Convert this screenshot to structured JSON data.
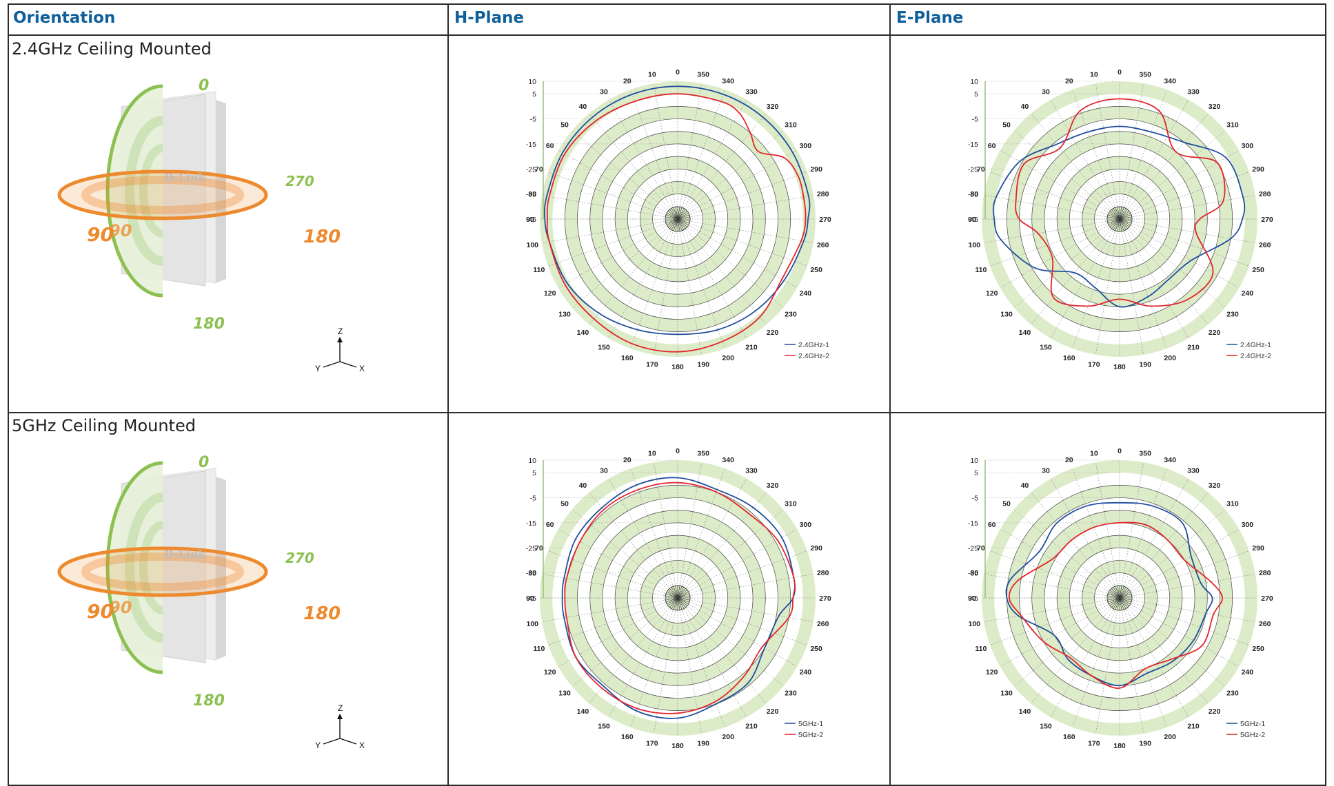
{
  "headers": {
    "orientation": "Orientation",
    "h_plane": "H-Plane",
    "e_plane": "E-Plane"
  },
  "rows": [
    {
      "label": "2.4GHz Ceiling Mounted",
      "device_logo": "D-Link",
      "axis_labels": [
        "0",
        "270",
        "90",
        "90",
        "180",
        "180"
      ],
      "coord": [
        "Z",
        "Y",
        "X"
      ]
    },
    {
      "label": "5GHz Ceiling Mounted",
      "device_logo": "D-Link",
      "axis_labels": [
        "0",
        "270",
        "90",
        "90",
        "180",
        "180"
      ],
      "coord": [
        "Z",
        "Y",
        "X"
      ]
    }
  ],
  "colors": {
    "series1": "#1f4e9e",
    "series2": "#e3242b",
    "ring": "#dcebc8",
    "header_text": "#0e5f9a",
    "green": "#8cc152",
    "orange": "#ee8a2e"
  },
  "chart_data": [
    {
      "type": "polar",
      "plane": "H-Plane",
      "band": "2.4GHz",
      "rlim": [
        -45,
        10
      ],
      "radial_ticks": [
        "10",
        "5",
        "-5",
        "-15",
        "-25",
        "-35",
        "-45"
      ],
      "angle_ticks": [
        "0",
        "10",
        "20",
        "30",
        "40",
        "50",
        "60",
        "70",
        "80",
        "90",
        "100",
        "110",
        "120",
        "130",
        "140",
        "150",
        "160",
        "170",
        "180",
        "190",
        "200",
        "210",
        "220",
        "230",
        "240",
        "250",
        "260",
        "270",
        "280",
        "290",
        "300",
        "310",
        "320",
        "330",
        "340",
        "350"
      ],
      "series": [
        {
          "name": "2.4GHz-1",
          "angles": [
            0,
            20,
            40,
            60,
            80,
            90,
            100,
            120,
            140,
            160,
            180,
            200,
            220,
            240,
            260,
            270,
            280,
            300,
            320,
            340
          ],
          "values": [
            8,
            8,
            8,
            8,
            8,
            8,
            7,
            6,
            4,
            2,
            1,
            2,
            3,
            4,
            6,
            7,
            8,
            8,
            8,
            8
          ]
        },
        {
          "name": "2.4GHz-2",
          "angles": [
            0,
            20,
            40,
            60,
            80,
            90,
            100,
            120,
            140,
            160,
            180,
            200,
            220,
            240,
            260,
            270,
            280,
            290,
            300,
            310,
            320,
            330,
            340
          ],
          "values": [
            5,
            5,
            6,
            7,
            7,
            7,
            7,
            7,
            7,
            8,
            8,
            7,
            6,
            3,
            5,
            6,
            6,
            6,
            4,
            -3,
            0,
            4,
            5
          ]
        }
      ]
    },
    {
      "type": "polar",
      "plane": "E-Plane",
      "band": "2.4GHz",
      "rlim": [
        -45,
        10
      ],
      "radial_ticks": [
        "10",
        "5",
        "-5",
        "-15",
        "-25",
        "-35",
        "-45"
      ],
      "angle_ticks": [
        "0",
        "10",
        "20",
        "30",
        "40",
        "50",
        "60",
        "70",
        "80",
        "90",
        "100",
        "110",
        "120",
        "130",
        "140",
        "150",
        "160",
        "170",
        "180",
        "190",
        "200",
        "210",
        "220",
        "230",
        "240",
        "250",
        "260",
        "270",
        "280",
        "290",
        "300",
        "310",
        "320",
        "330",
        "340",
        "350"
      ],
      "series": [
        {
          "name": "2.4GHz-1",
          "angles": [
            0,
            20,
            40,
            60,
            80,
            90,
            100,
            120,
            140,
            160,
            180,
            200,
            220,
            240,
            260,
            270,
            280,
            300,
            320,
            340
          ],
          "values": [
            -8,
            -8,
            -6,
            1,
            5,
            5,
            3,
            -6,
            -17,
            -16,
            -10,
            -12,
            -14,
            -12,
            0,
            4,
            5,
            4,
            -5,
            -8
          ]
        },
        {
          "name": "2.4GHz-2",
          "angles": [
            0,
            20,
            40,
            60,
            80,
            90,
            100,
            120,
            140,
            160,
            180,
            200,
            220,
            240,
            260,
            270,
            280,
            300,
            320,
            340
          ],
          "values": [
            3,
            1,
            -8,
            -1,
            -3,
            -5,
            -12,
            -14,
            -4,
            -8,
            -13,
            -8,
            -3,
            -2,
            -14,
            -13,
            -3,
            0,
            -10,
            1
          ]
        }
      ]
    },
    {
      "type": "polar",
      "plane": "H-Plane",
      "band": "5GHz",
      "rlim": [
        -45,
        10
      ],
      "radial_ticks": [
        "10",
        "5",
        "-5",
        "-15",
        "-25",
        "-35",
        "-45"
      ],
      "angle_ticks": [
        "0",
        "10",
        "20",
        "30",
        "40",
        "50",
        "60",
        "70",
        "80",
        "90",
        "100",
        "110",
        "120",
        "130",
        "140",
        "150",
        "160",
        "170",
        "180",
        "190",
        "200",
        "210",
        "220",
        "230",
        "240",
        "250",
        "260",
        "270",
        "280",
        "290",
        "300",
        "310",
        "320",
        "330",
        "340",
        "350"
      ],
      "series": [
        {
          "name": "5GHz-1",
          "angles": [
            0,
            20,
            40,
            60,
            80,
            90,
            100,
            120,
            140,
            160,
            180,
            200,
            220,
            240,
            260,
            270,
            280,
            300,
            320,
            340
          ],
          "values": [
            3,
            3,
            2,
            2,
            1,
            1,
            1,
            2,
            1,
            3,
            3,
            0,
            -1,
            -5,
            -4,
            1,
            2,
            3,
            2,
            1
          ]
        },
        {
          "name": "5GHz-2",
          "angles": [
            0,
            20,
            40,
            60,
            80,
            90,
            100,
            120,
            140,
            160,
            180,
            200,
            220,
            240,
            260,
            270,
            280,
            300,
            320,
            340
          ],
          "values": [
            1,
            1,
            1,
            0,
            0,
            0,
            0,
            2,
            2,
            2,
            1,
            -1,
            -4,
            -6,
            0,
            1,
            2,
            1,
            -1,
            0
          ]
        }
      ]
    },
    {
      "type": "polar",
      "plane": "E-Plane",
      "band": "5GHz",
      "rlim": [
        -45,
        10
      ],
      "radial_ticks": [
        "10",
        "5",
        "-5",
        "-15",
        "-25",
        "-35",
        "-45"
      ],
      "angle_ticks": [
        "0",
        "10",
        "20",
        "30",
        "40",
        "50",
        "60",
        "70",
        "80",
        "90",
        "100",
        "110",
        "120",
        "130",
        "140",
        "150",
        "160",
        "170",
        "180",
        "190",
        "200",
        "210",
        "220",
        "230",
        "240",
        "250",
        "260",
        "270",
        "280",
        "290",
        "300",
        "310",
        "320",
        "330",
        "340",
        "350"
      ],
      "series": [
        {
          "name": "5GHz-1",
          "angles": [
            0,
            20,
            40,
            60,
            80,
            90,
            100,
            120,
            140,
            160,
            180,
            200,
            220,
            240,
            260,
            270,
            280,
            300,
            320,
            340
          ],
          "values": [
            -7,
            -6,
            -6,
            -8,
            -1,
            0,
            -4,
            -15,
            -13,
            -12,
            -10,
            -13,
            -12,
            -11,
            -10,
            -8,
            -12,
            -12,
            -6,
            -6
          ]
        },
        {
          "name": "5GHz-2",
          "angles": [
            0,
            20,
            40,
            60,
            80,
            90,
            100,
            120,
            140,
            160,
            180,
            200,
            220,
            240,
            260,
            270,
            280,
            300,
            320,
            340
          ],
          "values": [
            -15,
            -15,
            -15,
            -14,
            -4,
            -1,
            -5,
            -10,
            -14,
            -12,
            -9,
            -15,
            -13,
            -7,
            -7,
            -4,
            -8,
            -15,
            -15,
            -14
          ]
        }
      ]
    }
  ]
}
